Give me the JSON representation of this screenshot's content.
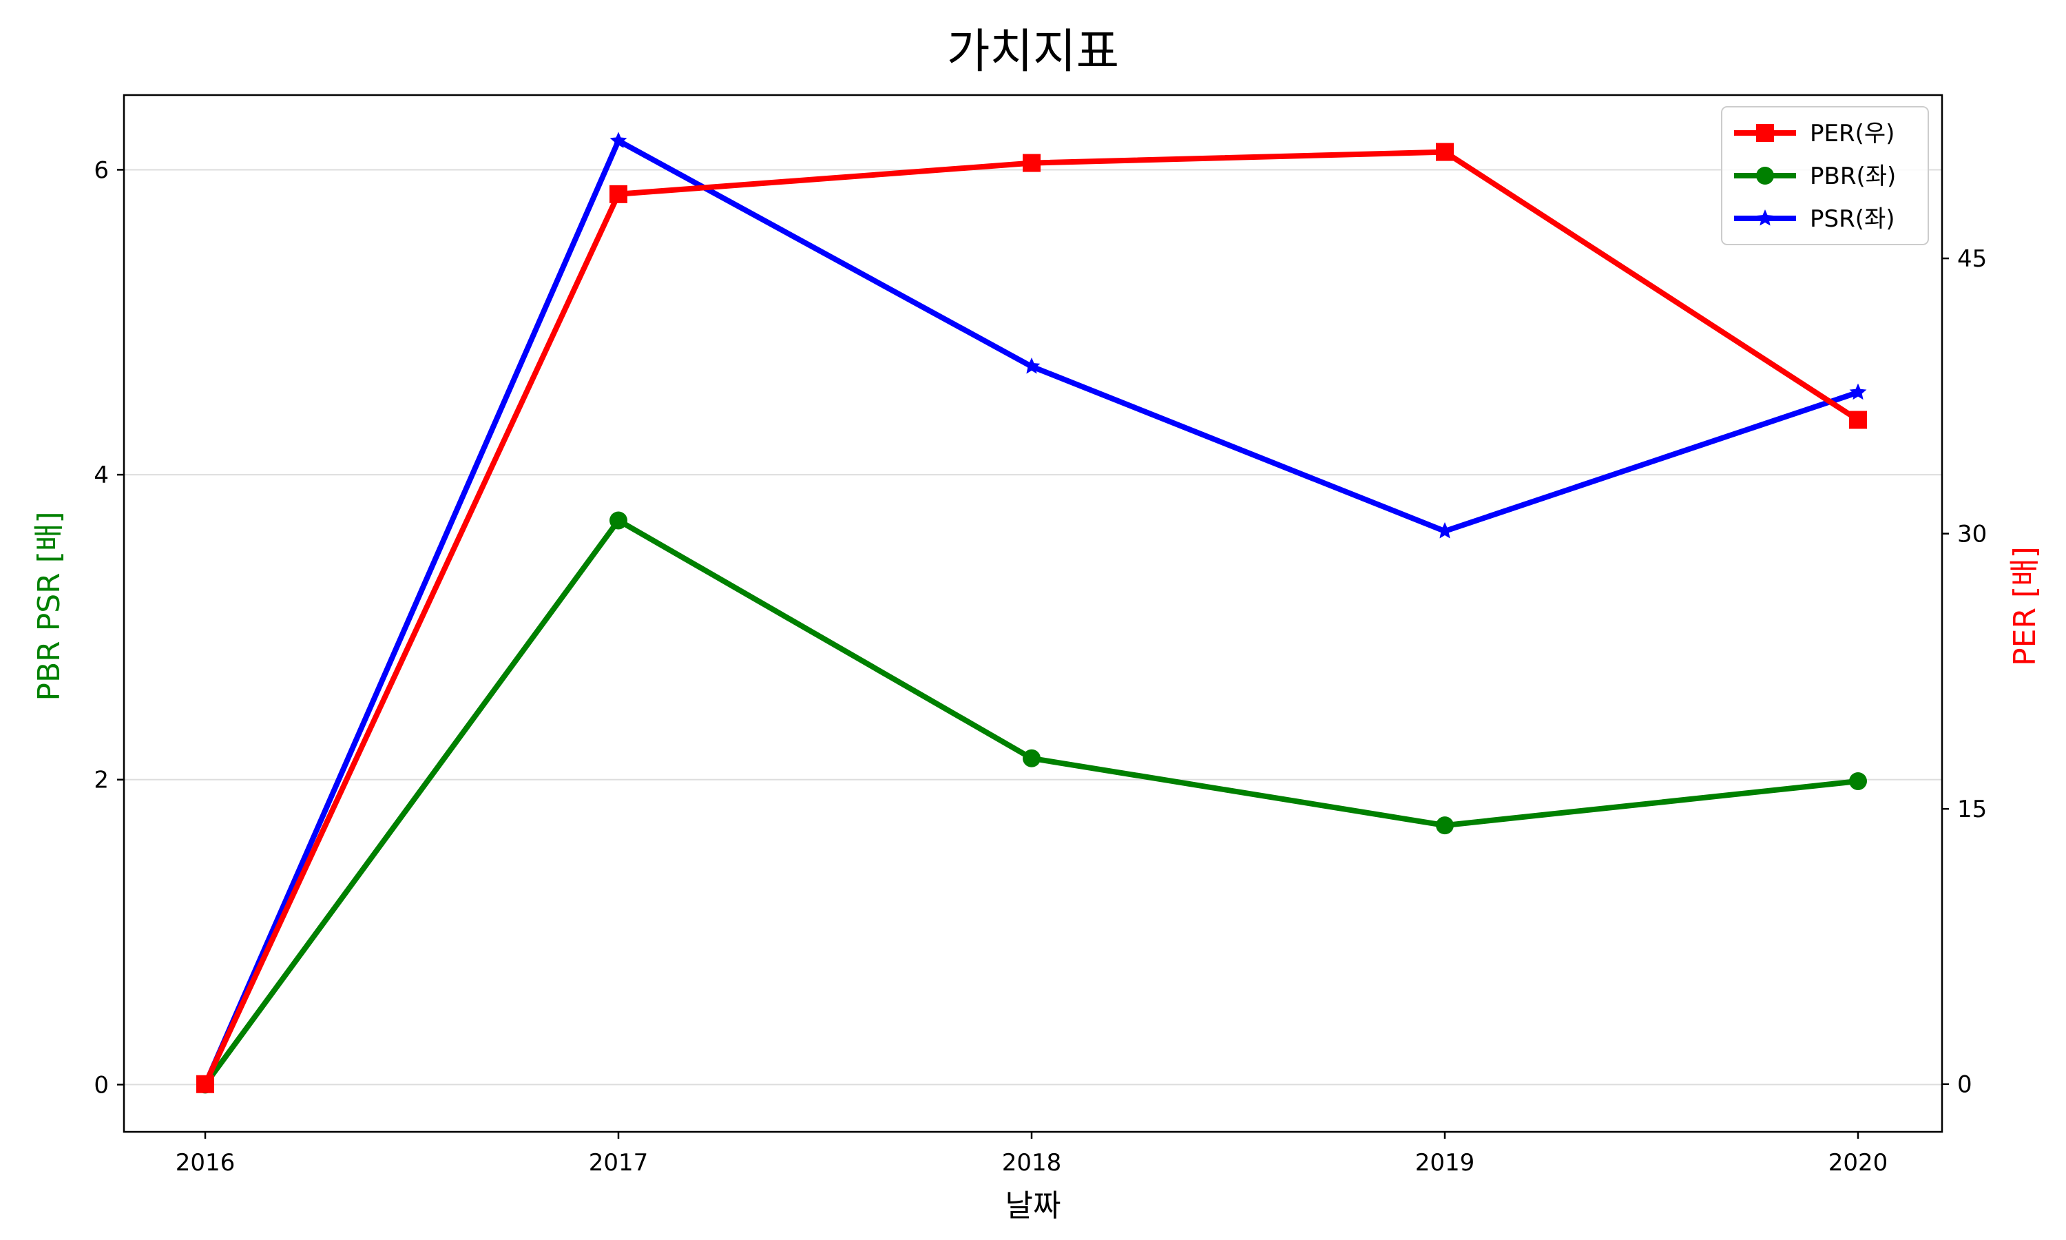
{
  "chart_data": {
    "type": "line",
    "title": "가치지표",
    "xlabel": "날짜",
    "ylabel_left": "PBR PSR [배]",
    "ylabel_right": "PER [배]",
    "categories": [
      "2016",
      "2017",
      "2018",
      "2019",
      "2020"
    ],
    "left_axis": {
      "ylim": [
        -0.31,
        6.49
      ],
      "ticks": [
        0,
        2,
        4,
        6
      ],
      "tick_labels": [
        "0",
        "2",
        "4",
        "6"
      ],
      "grid": true
    },
    "right_axis": {
      "ylim": [
        -2.6,
        53.9
      ],
      "ticks": [
        0,
        15,
        30,
        45
      ],
      "tick_labels": [
        "0",
        "15",
        "30",
        "45"
      ]
    },
    "series": [
      {
        "name": "PER(우)",
        "axis": "right",
        "color": "#ff0000",
        "marker": "square",
        "values": [
          0,
          48.5,
          50.2,
          50.8,
          36.2
        ]
      },
      {
        "name": "PBR(좌)",
        "axis": "left",
        "color": "#008000",
        "marker": "circle",
        "values": [
          0,
          3.7,
          2.14,
          1.7,
          1.99
        ]
      },
      {
        "name": "PSR(좌)",
        "axis": "left",
        "color": "#0000ff",
        "marker": "star",
        "values": [
          0,
          6.19,
          4.71,
          3.63,
          4.54
        ]
      }
    ],
    "legend_position": "top-right"
  }
}
